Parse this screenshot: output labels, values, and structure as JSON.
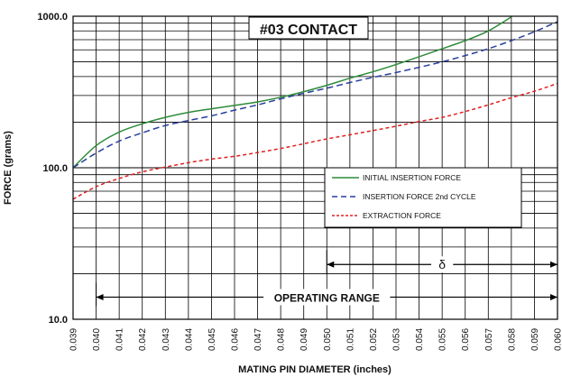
{
  "chart_data": {
    "type": "line",
    "title": "#03 CONTACT",
    "xlabel": "MATING PIN  DIAMETER (inches)",
    "ylabel": "FORCE (grams)",
    "x_scale": "linear",
    "y_scale": "log",
    "xlim": [
      0.039,
      0.06
    ],
    "ylim": [
      10,
      1000
    ],
    "x_ticks": [
      "0.039",
      "0.040",
      "0.041",
      "0.042",
      "0.043",
      "0.044",
      "0.045",
      "0.046",
      "0.047",
      "0.048",
      "0.049",
      "0.050",
      "0.051",
      "0.052",
      "0.053",
      "0.054",
      "0.055",
      "0.056",
      "0.057",
      "0.058",
      "0.059",
      "0.060"
    ],
    "y_ticks": [
      "10.0",
      "100.0",
      "1000.0"
    ],
    "grid": true,
    "legend_position": "center-right",
    "series": [
      {
        "name": "INITIAL INSERTION FORCE",
        "color": "#2e8b3a",
        "style": "solid",
        "x": [
          0.039,
          0.04,
          0.041,
          0.042,
          0.043,
          0.044,
          0.045,
          0.046,
          0.047,
          0.048,
          0.049,
          0.05,
          0.051,
          0.052,
          0.053,
          0.054,
          0.055,
          0.056,
          0.057,
          0.058
        ],
        "y": [
          100,
          140,
          172,
          195,
          215,
          232,
          245,
          258,
          272,
          292,
          318,
          350,
          390,
          430,
          480,
          540,
          610,
          690,
          800,
          990
        ]
      },
      {
        "name": "INSERTION FORCE 2nd CYCLE",
        "color": "#2a3f9e",
        "style": "dashed",
        "x": [
          0.039,
          0.04,
          0.041,
          0.042,
          0.043,
          0.044,
          0.045,
          0.046,
          0.047,
          0.048,
          0.049,
          0.05,
          0.051,
          0.052,
          0.053,
          0.054,
          0.055,
          0.056,
          0.057,
          0.058,
          0.059,
          0.06
        ],
        "y": [
          100,
          125,
          150,
          170,
          190,
          205,
          220,
          240,
          260,
          285,
          310,
          335,
          365,
          395,
          425,
          460,
          500,
          550,
          610,
          690,
          790,
          920
        ]
      },
      {
        "name": "EXTRACTION FORCE",
        "color": "#e02222",
        "style": "dashed",
        "x": [
          0.039,
          0.04,
          0.041,
          0.042,
          0.043,
          0.044,
          0.045,
          0.046,
          0.047,
          0.048,
          0.049,
          0.05,
          0.051,
          0.052,
          0.053,
          0.054,
          0.055,
          0.056,
          0.057,
          0.058,
          0.059,
          0.06
        ],
        "y": [
          62,
          75,
          85,
          94,
          101,
          108,
          114,
          119,
          126,
          134,
          144,
          155,
          165,
          176,
          188,
          202,
          215,
          235,
          260,
          290,
          320,
          360
        ]
      }
    ],
    "annotations": [
      {
        "text": "OPERATING RANGE",
        "x_start": 0.04,
        "x_end": 0.06,
        "y": 14
      },
      {
        "text": "δ",
        "x_start": 0.05,
        "x_end": 0.06,
        "y": 23
      }
    ]
  }
}
